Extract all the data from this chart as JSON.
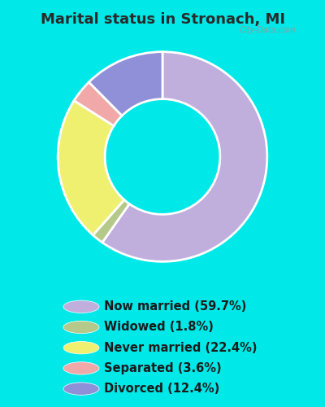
{
  "title": "Marital status in Stronach, MI",
  "slices": [
    59.7,
    1.8,
    22.4,
    3.6,
    12.4
  ],
  "colors": [
    "#c0aedd",
    "#b5c98a",
    "#f0f070",
    "#f0a8a8",
    "#9090d8"
  ],
  "labels": [
    "Now married (59.7%)",
    "Widowed (1.8%)",
    "Never married (22.4%)",
    "Separated (3.6%)",
    "Divorced (12.4%)"
  ],
  "legend_colors": [
    "#c0aedd",
    "#b5c98a",
    "#f0f070",
    "#f0a8a8",
    "#9090d8"
  ],
  "background_outer": "#00e8e8",
  "background_chart_color": "#d4edd8",
  "title_fontsize": 13,
  "title_color": "#2a2a2a",
  "watermark": "City-Data.com",
  "donut_width": 0.45,
  "legend_fontsize": 10.5,
  "legend_text_color": "#1a1a1a"
}
